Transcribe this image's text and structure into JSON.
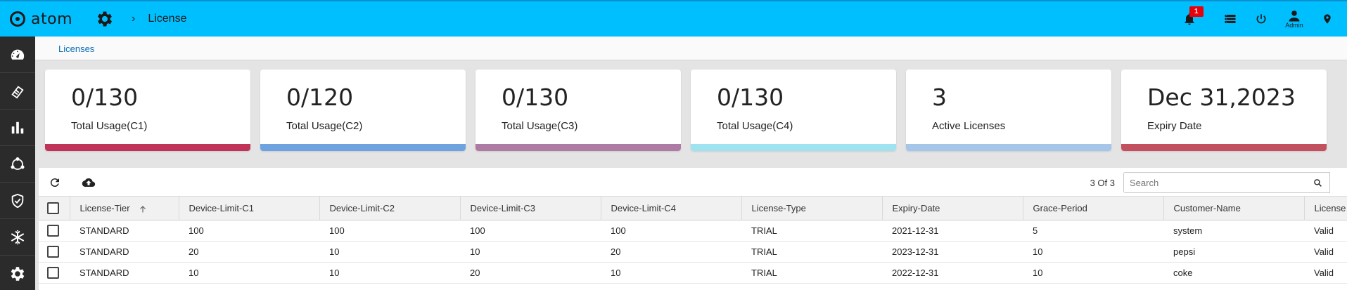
{
  "header": {
    "brand": "atom",
    "page_title": "License",
    "notification_count": "1",
    "admin_label": "Admin"
  },
  "breadcrumb": {
    "link": "Licenses"
  },
  "cards": [
    {
      "value": "0/130",
      "label": "Total Usage(C1)",
      "color": "#c0345a"
    },
    {
      "value": "0/120",
      "label": "Total Usage(C2)",
      "color": "#6fa3e0"
    },
    {
      "value": "0/130",
      "label": "Total Usage(C3)",
      "color": "#ad7ba3"
    },
    {
      "value": "0/130",
      "label": "Total Usage(C4)",
      "color": "#9fe3f0"
    },
    {
      "value": "3",
      "label": "Active Licenses",
      "color": "#a5c6e8"
    },
    {
      "value": "Dec 31,2023",
      "label": "Expiry Date",
      "color": "#c2505e"
    }
  ],
  "table": {
    "count_text": "3 Of 3",
    "search_placeholder": "Search",
    "columns": [
      "License-Tier",
      "Device-Limit-C1",
      "Device-Limit-C2",
      "Device-Limit-C3",
      "Device-Limit-C4",
      "License-Type",
      "Expiry-Date",
      "Grace-Period",
      "Customer-Name",
      "License"
    ],
    "rows": [
      [
        "STANDARD",
        "100",
        "100",
        "100",
        "100",
        "TRIAL",
        "2021-12-31",
        "5",
        "system",
        "Valid"
      ],
      [
        "STANDARD",
        "20",
        "10",
        "10",
        "20",
        "TRIAL",
        "2023-12-31",
        "10",
        "pepsi",
        "Valid"
      ],
      [
        "STANDARD",
        "10",
        "10",
        "20",
        "10",
        "TRIAL",
        "2022-12-31",
        "10",
        "coke",
        "Valid"
      ]
    ]
  },
  "icons": {
    "sidebar": [
      "dashboard-icon",
      "devices-icon",
      "charts-icon",
      "topology-icon",
      "security-icon",
      "snowflake-icon",
      "settings-icon"
    ],
    "toolbar": [
      "refresh-icon",
      "cloud-upload-icon",
      "search-icon"
    ]
  }
}
